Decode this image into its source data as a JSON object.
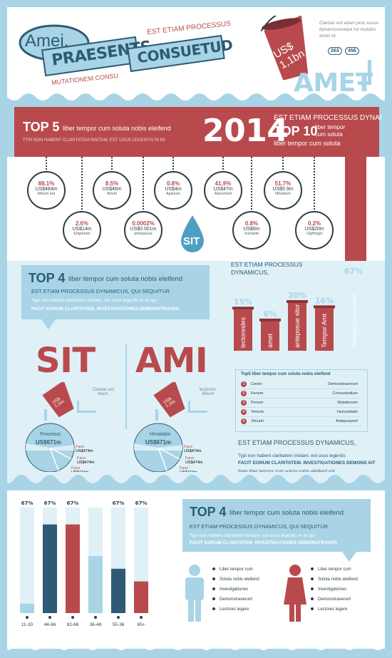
{
  "colors": {
    "red": "#b84a4d",
    "navy": "#2d5b73",
    "light_blue": "#a8d4e6",
    "pale": "#dff0f7",
    "white": "#ffffff"
  },
  "header": {
    "amei": "Amei,",
    "praesents": "PRAESENTS",
    "consuetud": "CONSUETUD",
    "est_etiam": "EST ETIAM PROCESSUS",
    "mutationem": "MUTATIONEM CONSU",
    "claritas": "Claritas est etiam proc essus dynamicussequi tur mutatio amet sit.",
    "bucket_price": "US$ 1,1bn",
    "counter_a": "263",
    "counter_b": "456",
    "amet": "AMET"
  },
  "banner": {
    "top5": "TOP 5",
    "top5_text": "liber tempor cum soluta nobis eleifend",
    "typi": "TYPI NON HABENT CLARITATEM INSITAM; EST USUS LEGENTIS IN IIS",
    "year": "2014",
    "est_etiam": "EST ETIAM PROCESSUS DYNAI",
    "top10": "TOP 10",
    "top10_text_1": "liber tempor",
    "top10_text_2": "cum soluta",
    "top10_text_3": "liber tempor cum soluta"
  },
  "circles": [
    {
      "pct": "88.1%",
      "value": "US$484m",
      "label": "Mirum est"
    },
    {
      "pct": "2.6%",
      "value": "US$14m",
      "label": "Ertgioium"
    },
    {
      "pct": "8.5%",
      "value": "US$46m",
      "label": "Airum"
    },
    {
      "pct": "0.0002%",
      "value": "US$0.001m",
      "label": "anteposue"
    },
    {
      "pct": "0.8%",
      "value": "US$4m",
      "label": "Ajuioum"
    },
    {
      "pct": "41.9%",
      "value": "US$47m",
      "label": "Asirumest"
    },
    {
      "pct": "0.8%",
      "value": "US$6m",
      "label": "humanit"
    },
    {
      "pct": "51.7%",
      "value": "US$5.9m",
      "label": "Nfuioium"
    },
    {
      "pct": "0.2%",
      "value": "US$20m",
      "label": "Oghhyjpl"
    }
  ],
  "sit_drop": "SIT",
  "top4_a": {
    "title": "TOP 4",
    "text": "liber tempor cum soluta nobis eleifend",
    "sub": "EST ETIAM PROCESSUS DYNAMICUS, QUI SEQUITUR",
    "desc": "Typi non habent claritatem insitam; est usus legentis in iis qui",
    "bold": "FACIT EORUM CLARITATEM. INVESTIGATIONES DEMONSTRAVER."
  },
  "chart_data": [
    {
      "type": "bar",
      "title": "EST ETIAM PROCESSUS DYNAMICUS,",
      "categories": [
        "lectoresles",
        "amet",
        "anteposue sitor",
        "Tempor Amt",
        "Tempor cum soluta"
      ],
      "values": [
        15,
        6,
        20,
        16,
        67
      ],
      "value_labels": [
        "15%",
        "6%",
        "20%",
        "16%",
        "67%"
      ],
      "unit": "%"
    },
    {
      "type": "bar",
      "categories": [
        "11-33",
        "44-66",
        "82-68",
        "36-48",
        "55-36",
        "65+"
      ],
      "values": [
        67,
        67,
        67,
        67,
        67,
        67
      ],
      "value_labels": [
        "67%",
        "67%",
        "67%",
        "",
        "67%",
        "67%"
      ],
      "fill_fractions": [
        0.09,
        0.84,
        0.84,
        0.54,
        0.42,
        0.3
      ],
      "colors": [
        "#a8d4e6",
        "#2d5b73",
        "#b84a4d",
        "#a8d4e6",
        "#2d5b73",
        "#b84a4d"
      ]
    }
  ],
  "sit_ami": {
    "sit": "SIT",
    "ami": "AMI",
    "clantas": "Clantas est etiam.",
    "lectorum": "lectorum. Mirum",
    "left_label": "Procesus",
    "left_value": "US$671m",
    "right_label": "Hmaitatis",
    "right_value": "US$671m",
    "bucket_text": "US$ 1,1bn",
    "face_items": [
      {
        "name": "Face",
        "value": "US$474m"
      },
      {
        "name": "Face",
        "value": "US$474m"
      },
      {
        "name": "Face",
        "value": "US$474m"
      }
    ]
  },
  "top5_list": {
    "title": "Top5 liber tempor cum soluta nobis eleifend",
    "rows": [
      {
        "n": "1",
        "a": "Cenim",
        "c": "Demonstraverunt"
      },
      {
        "n": "2",
        "a": "Kenom",
        "c": "Consuetudium"
      },
      {
        "n": "3",
        "a": "Penum",
        "c": "Mutationem"
      },
      {
        "n": "4",
        "a": "Yenuok",
        "c": "Humanitatis"
      },
      {
        "n": "5",
        "a": "Jhnuoh",
        "c": "Anteposuerit"
      }
    ]
  },
  "est_block": {
    "title": "EST ETIAM PROCESSUS DYNAMICUS,",
    "line1": "Typi non habent claritatem insitam; est usus legentis",
    "line2": "FACIT EORUM CLARITATEM. INVESTIGATIONES DEMONS AIT",
    "line3": "Nam liber tempor cum soluta nobis eleifend opt."
  },
  "top4_b": {
    "title": "TOP 4",
    "text": "liber tempor cum soluta nobis eleifend",
    "sub": "EST ETIAM PROCESSUS DYNAMICUS, QUI SEQUITUR",
    "desc": "Typi non habent claritatem insitam; est usus legentis in iis qui",
    "bold": "FACIT EORUM CLARITATEM. INVESTIGATIONES DEMONSTRAVER."
  },
  "legend_male": [
    "Liber tempor cum",
    "Soluta nobis eleifend",
    "Investigationes",
    "Demonstraverunt",
    "Lectores legere"
  ],
  "legend_female": [
    "Liber tempor cum",
    "Soluta nobis eleifend",
    "Investigationes",
    "Demonstraverunt",
    "Lectores legere"
  ]
}
